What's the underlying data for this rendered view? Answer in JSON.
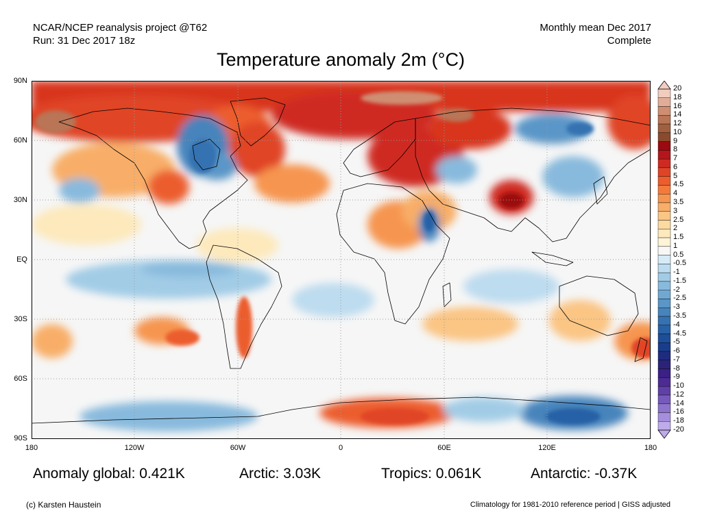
{
  "header": {
    "left_line1": "NCAR/NCEP reanalysis project @T62",
    "left_line2": "Run: 31 Dec 2017 18z",
    "right_line1": "Monthly mean Dec 2017",
    "right_line2": "Complete"
  },
  "title": "Temperature anomaly 2m (°C)",
  "axes": {
    "lat_labels": [
      "90N",
      "60N",
      "30N",
      "EQ",
      "30S",
      "60S",
      "90S"
    ],
    "lon_labels": [
      "180",
      "120W",
      "60W",
      "0",
      "60E",
      "120E",
      "180"
    ]
  },
  "colorbar": {
    "labels": [
      "20",
      "18",
      "16",
      "14",
      "12",
      "10",
      "9",
      "8",
      "7",
      "6",
      "5",
      "4.5",
      "4",
      "3.5",
      "3",
      "2.5",
      "2",
      "1.5",
      "1",
      "0.5",
      "-0.5",
      "-1",
      "-1.5",
      "-2",
      "-2.5",
      "-3",
      "-3.5",
      "-4",
      "-4.5",
      "-5",
      "-6",
      "-7",
      "-8",
      "-9",
      "-10",
      "-12",
      "-14",
      "-16",
      "-18",
      "-20"
    ],
    "colors": [
      "#f2cdbf",
      "#e2ad98",
      "#cf8e72",
      "#b97556",
      "#a0603f",
      "#8b4a2e",
      "#9b0a10",
      "#b5161c",
      "#cf2a22",
      "#e04426",
      "#ec5d2e",
      "#f47a3c",
      "#f69550",
      "#f8ae68",
      "#fbc584",
      "#fcdaa0",
      "#fde9bc",
      "#fef4d8",
      "#f7f7f7",
      "#d6ebf6",
      "#bddcef",
      "#a2cce6",
      "#88badd",
      "#70a8d2",
      "#5a96c7",
      "#4784bc",
      "#3672b1",
      "#2861a6",
      "#1d4f99",
      "#1a3c8c",
      "#1e2c80",
      "#2b237a",
      "#3b2085",
      "#4d2b95",
      "#6040a8",
      "#7659bb",
      "#8d73cc",
      "#a58fdc",
      "#bdabea"
    ]
  },
  "stats": {
    "global": "Anomaly global: 0.421K",
    "arctic": "Arctic: 3.03K",
    "tropics": "Tropics: 0.061K",
    "antarctic": "Antarctic: -0.37K"
  },
  "footer": {
    "left": "(c) Karsten Haustein",
    "right": "Climatology for 1981-2010 reference period | GISS adjusted"
  }
}
